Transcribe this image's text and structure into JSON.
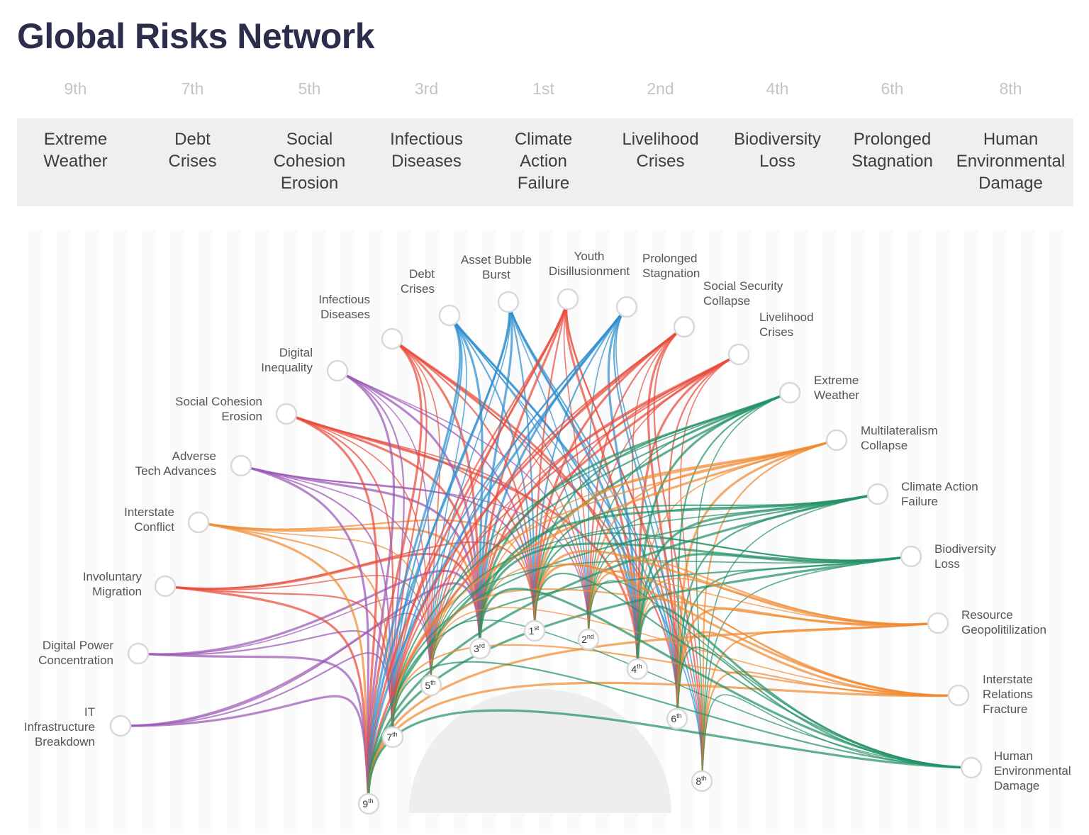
{
  "title": "Global Risks Network",
  "top_risks": [
    {
      "rank": "9th",
      "name": "Extreme\nWeather"
    },
    {
      "rank": "7th",
      "name": "Debt\nCrises"
    },
    {
      "rank": "5th",
      "name": "Social\nCohesion\nErosion"
    },
    {
      "rank": "3rd",
      "name": "Infectious\nDiseases"
    },
    {
      "rank": "1st",
      "name": "Climate\nAction\nFailure"
    },
    {
      "rank": "2nd",
      "name": "Livelihood\nCrises"
    },
    {
      "rank": "4th",
      "name": "Biodiversity\nLoss"
    },
    {
      "rank": "6th",
      "name": "Prolonged\nStagnation"
    },
    {
      "rank": "8th",
      "name": "Human\nEnvironmental\nDamage"
    }
  ],
  "outer_nodes": [
    {
      "name": "IT\nInfrastructure\nBreakdown",
      "color": "#9b59b6",
      "targets": [
        9,
        7,
        5,
        3
      ]
    },
    {
      "name": "Digital Power\nConcentration",
      "color": "#9b59b6",
      "targets": [
        9,
        7,
        5,
        3
      ]
    },
    {
      "name": "Involuntary\nMigration",
      "color": "#e74c3c",
      "targets": [
        9,
        7,
        5,
        3,
        1
      ]
    },
    {
      "name": "Interstate\nConflict",
      "color": "#f08a32",
      "targets": [
        9,
        7,
        5,
        3,
        1
      ]
    },
    {
      "name": "Adverse\nTech Advances",
      "color": "#9b59b6",
      "targets": [
        9,
        7,
        5,
        3,
        1,
        2
      ]
    },
    {
      "name": "Social Cohesion\nErosion",
      "color": "#e74c3c",
      "targets": [
        9,
        7,
        5,
        3,
        1,
        2,
        4
      ]
    },
    {
      "name": "Digital\nInequality",
      "color": "#9b59b6",
      "targets": [
        9,
        7,
        5,
        3,
        1,
        2
      ]
    },
    {
      "name": "Infectious\nDiseases",
      "color": "#e74c3c",
      "targets": [
        9,
        7,
        5,
        3,
        1,
        2,
        4,
        6
      ]
    },
    {
      "name": "Debt\nCrises",
      "color": "#2e8fcf",
      "targets": [
        9,
        7,
        5,
        3,
        1,
        2,
        4,
        6,
        8
      ]
    },
    {
      "name": "Asset Bubble\nBurst",
      "color": "#2e8fcf",
      "targets": [
        9,
        7,
        5,
        3,
        1,
        2,
        4,
        6,
        8
      ]
    },
    {
      "name": "Youth\nDisillusionment",
      "color": "#e74c3c",
      "targets": [
        9,
        7,
        5,
        3,
        1,
        2,
        4,
        6,
        8
      ]
    },
    {
      "name": "Prolonged\nStagnation",
      "color": "#2e8fcf",
      "targets": [
        9,
        7,
        5,
        3,
        1,
        2,
        4,
        6,
        8
      ]
    },
    {
      "name": "Social Security\nCollapse",
      "color": "#e74c3c",
      "targets": [
        7,
        5,
        3,
        1,
        2,
        4,
        6,
        8
      ]
    },
    {
      "name": "Livelihood\nCrises",
      "color": "#e74c3c",
      "targets": [
        9,
        7,
        5,
        3,
        1,
        2,
        4,
        6,
        8
      ]
    },
    {
      "name": "Extreme\nWeather",
      "color": "#249267",
      "targets": [
        9,
        7,
        5,
        3,
        1,
        2,
        4,
        6,
        8
      ]
    },
    {
      "name": "Multilateralism\nCollapse",
      "color": "#f08a32",
      "targets": [
        7,
        5,
        3,
        1,
        2,
        4,
        6,
        8
      ]
    },
    {
      "name": "Climate Action\nFailure",
      "color": "#249267",
      "targets": [
        9,
        7,
        5,
        3,
        1,
        2,
        4,
        6,
        8
      ]
    },
    {
      "name": "Biodiversity\nLoss",
      "color": "#249267",
      "targets": [
        9,
        7,
        5,
        3,
        1,
        2,
        4,
        6,
        8
      ]
    },
    {
      "name": "Resource\nGeopolitilization",
      "color": "#f08a32",
      "targets": [
        9,
        5,
        3,
        1,
        2,
        4,
        6,
        8
      ]
    },
    {
      "name": "Interstate\nRelations\nFracture",
      "color": "#f08a32",
      "targets": [
        9,
        7,
        5,
        1,
        2,
        4,
        6,
        8
      ]
    },
    {
      "name": "Human\nEnvironmental\nDamage",
      "color": "#249267",
      "targets": [
        9,
        7,
        5,
        3,
        1,
        2,
        4,
        6,
        8
      ]
    }
  ],
  "inner_nodes": [
    {
      "rank": 1,
      "num": "1",
      "sup": "st"
    },
    {
      "rank": 2,
      "num": "2",
      "sup": "nd"
    },
    {
      "rank": 3,
      "num": "3",
      "sup": "rd"
    },
    {
      "rank": 4,
      "num": "4",
      "sup": "th"
    },
    {
      "rank": 5,
      "num": "5",
      "sup": "th"
    },
    {
      "rank": 6,
      "num": "6",
      "sup": "th"
    },
    {
      "rank": 7,
      "num": "7",
      "sup": "th"
    },
    {
      "rank": 8,
      "num": "8",
      "sup": "th"
    },
    {
      "rank": 9,
      "num": "9",
      "sup": "th"
    }
  ]
}
